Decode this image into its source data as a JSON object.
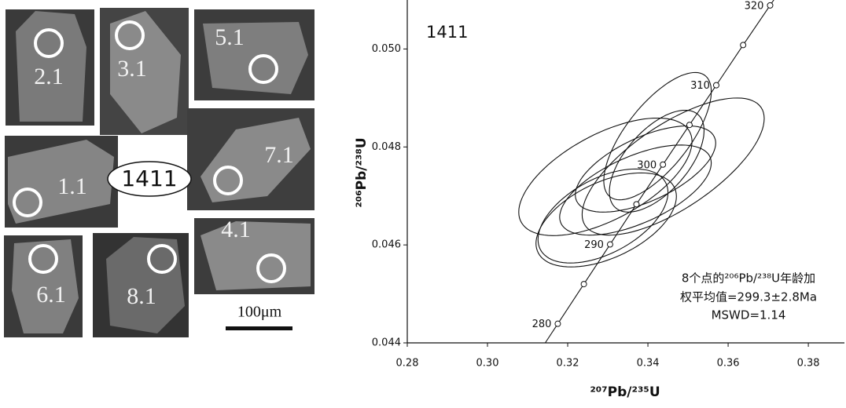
{
  "images": {
    "sample": "1411",
    "scale": "100μm",
    "spots": [
      "2.1",
      "3.1",
      "5.1",
      "1.1",
      "7.1",
      "6.1",
      "8.1",
      "4.1"
    ]
  },
  "chart_data": {
    "type": "concordia",
    "title": "1411",
    "xlabel": "²⁰⁷Pb/²³⁵U",
    "ylabel": "²⁰⁶Pb/²³⁸U",
    "xlim": [
      0.28,
      0.389
    ],
    "ylim": [
      0.044,
      0.051
    ],
    "xticks": [
      0.28,
      {
        "value": 0.3,
        "label": "0.30"
      },
      0.32,
      0.34,
      0.36,
      0.38
    ],
    "yticks": [
      0.044,
      0.046,
      0.048,
      {
        "value": 0.05,
        "label": "0.050"
      }
    ],
    "color": "#111111",
    "concordia": {
      "ages": [
        280,
        null,
        290,
        null,
        300,
        null,
        310,
        null,
        320
      ],
      "x": [
        0.31753,
        0.32403,
        0.33057,
        0.33714,
        0.34374,
        0.35037,
        0.35704,
        0.36374,
        0.37047
      ],
      "y": [
        0.04439,
        0.0452,
        0.04601,
        0.04683,
        0.04764,
        0.04845,
        0.04926,
        0.05008,
        0.05089
      ]
    },
    "ellipses": {
      "x": [
        0.3424,
        0.3463,
        0.3294,
        0.3288,
        0.3369,
        0.3394,
        0.3422,
        0.3296
      ],
      "y": [
        0.04822,
        0.0476,
        0.04739,
        0.04659,
        0.04712,
        0.04755,
        0.04771,
        0.04651
      ],
      "x_err": [
        0.0134,
        0.0227,
        0.0216,
        0.0162,
        0.0189,
        0.0175,
        0.0118,
        0.0175
      ],
      "y_err": [
        0.0013,
        0.0014,
        0.0012,
        0.00096,
        0.00092,
        0.00088,
        0.00104,
        0.00096
      ],
      "rho": [
        0.7,
        0.7,
        0.6,
        0.5,
        0.6,
        0.6,
        0.6,
        0.5
      ]
    },
    "annotations": [
      "8个点的²⁰⁶Pb/²³⁸U年龄加",
      "权平均值=299.3±2.8Ma",
      "MSWD=1.14"
    ]
  }
}
